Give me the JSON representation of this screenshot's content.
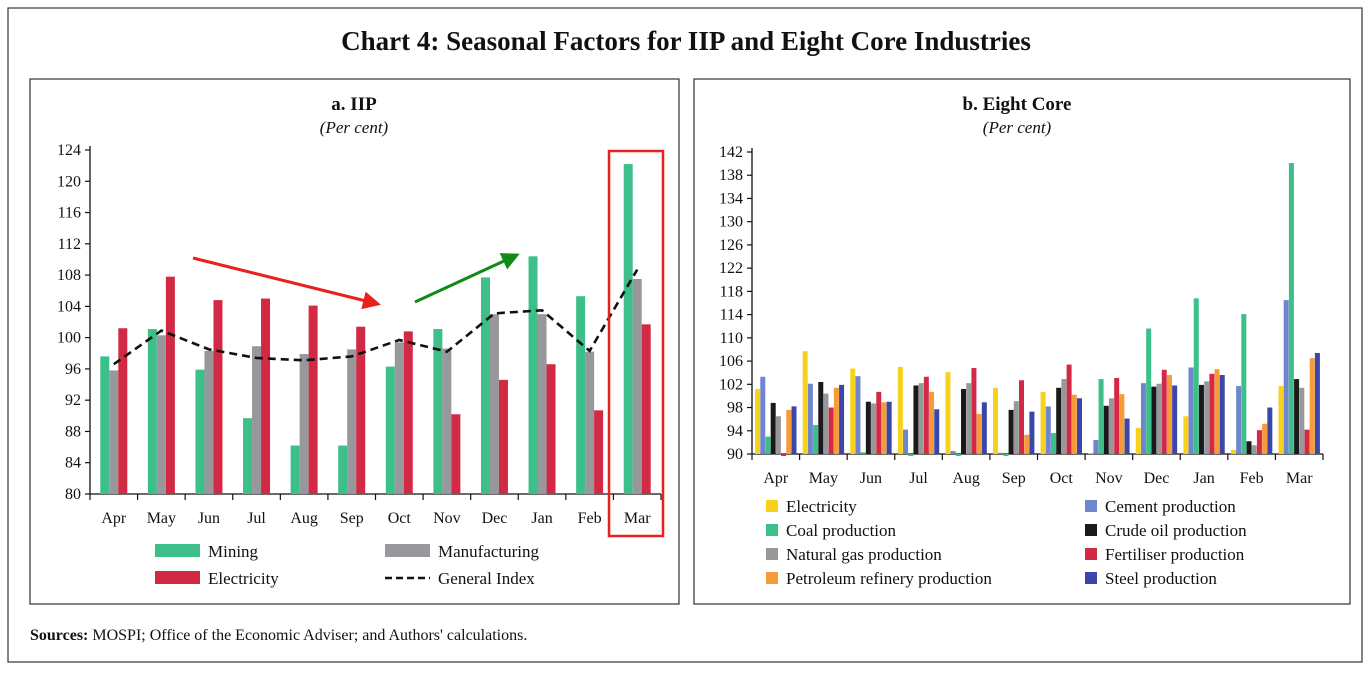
{
  "title": "Chart 4: Seasonal Factors for IIP and Eight Core Industries",
  "sources_label": "Sources:",
  "sources_text": "MOSPI; Office of the Economic Adviser; and Authors' calculations.",
  "chart_data": [
    {
      "type": "bar",
      "title": "a. IIP",
      "subtitle": "(Per cent)",
      "xlabel": "",
      "ylabel": "",
      "ylim": [
        80,
        124
      ],
      "yticks": [
        80,
        84,
        88,
        92,
        96,
        100,
        104,
        108,
        112,
        116,
        120,
        124
      ],
      "categories": [
        "Apr",
        "May",
        "Jun",
        "Jul",
        "Aug",
        "Sep",
        "Oct",
        "Nov",
        "Dec",
        "Jan",
        "Feb",
        "Mar"
      ],
      "series": [
        {
          "name": "Mining",
          "kind": "bar",
          "color": "#3dbf8a",
          "values": [
            97.6,
            101.1,
            95.9,
            89.7,
            86.2,
            86.2,
            96.3,
            101.1,
            107.7,
            110.4,
            105.3,
            122.2
          ]
        },
        {
          "name": "Manufacturing",
          "kind": "bar",
          "color": "#98989c",
          "values": [
            95.8,
            100.3,
            98.3,
            98.9,
            97.9,
            98.5,
            99.4,
            98.6,
            103.0,
            103.0,
            98.2,
            107.5
          ]
        },
        {
          "name": "Electricity",
          "kind": "bar",
          "color": "#d22a45",
          "values": [
            101.2,
            107.8,
            104.8,
            105.0,
            104.1,
            101.4,
            100.8,
            90.2,
            94.6,
            96.6,
            90.7,
            101.7
          ]
        },
        {
          "name": "General Index",
          "kind": "dashed-line",
          "color": "#111111",
          "values": [
            96.6,
            100.9,
            98.5,
            97.4,
            97.1,
            97.6,
            99.7,
            98.2,
            103.1,
            103.5,
            98.3,
            108.7
          ]
        }
      ],
      "legend": "bottom",
      "annotations": [
        {
          "type": "arrow",
          "color": "#e8211d",
          "meaning": "declining trend",
          "from": [
            "May",
            113
          ],
          "to": [
            "Oct",
            107
          ]
        },
        {
          "type": "arrow",
          "color": "#138a16",
          "meaning": "rising trend",
          "from": [
            "Oct",
            104
          ],
          "to": [
            "Jan",
            111
          ]
        },
        {
          "type": "highlight-box",
          "color": "#e8211d",
          "category": "Mar"
        }
      ]
    },
    {
      "type": "bar",
      "title": "b. Eight Core",
      "subtitle": "(Per cent)",
      "xlabel": "",
      "ylabel": "",
      "ylim": [
        90,
        142
      ],
      "yticks": [
        90,
        94,
        98,
        102,
        106,
        110,
        114,
        118,
        122,
        126,
        130,
        134,
        138,
        142
      ],
      "categories": [
        "Apr",
        "May",
        "Jun",
        "Jul",
        "Aug",
        "Sep",
        "Oct",
        "Nov",
        "Dec",
        "Jan",
        "Feb",
        "Mar"
      ],
      "series": [
        {
          "name": "Electricity",
          "color": "#f7d21a",
          "values": [
            101.2,
            107.7,
            104.7,
            105.0,
            104.1,
            101.4,
            100.7,
            90.2,
            94.5,
            96.5,
            90.7,
            101.7
          ]
        },
        {
          "name": "Cement production",
          "color": "#6f86cc",
          "values": [
            103.3,
            102.1,
            103.4,
            94.2,
            90.5,
            90.2,
            98.2,
            92.4,
            102.2,
            104.9,
            101.7,
            116.5
          ]
        },
        {
          "name": "Coal production",
          "color": "#3dbf8a",
          "values": [
            93.0,
            95.0,
            90.3,
            89.9,
            89.8,
            89.8,
            93.6,
            102.9,
            111.6,
            116.8,
            114.1,
            140.1
          ]
        },
        {
          "name": "Crude oil production",
          "color": "#1a1a1a",
          "values": [
            98.8,
            102.4,
            99.0,
            101.8,
            101.2,
            97.6,
            101.4,
            98.3,
            101.6,
            101.9,
            92.2,
            102.9
          ]
        },
        {
          "name": "Natural gas production",
          "color": "#98989c",
          "values": [
            96.5,
            100.4,
            98.7,
            102.2,
            102.2,
            99.1,
            102.9,
            99.6,
            102.1,
            102.5,
            91.5,
            101.4
          ]
        },
        {
          "name": "Fertiliser production",
          "color": "#d22a45",
          "values": [
            89.8,
            98.0,
            100.7,
            103.3,
            104.8,
            102.7,
            105.4,
            103.1,
            104.5,
            103.8,
            94.1,
            94.2
          ]
        },
        {
          "name": "Petroleum refinery production",
          "color": "#f79a3a",
          "values": [
            97.6,
            101.4,
            98.9,
            100.7,
            96.9,
            93.3,
            100.2,
            100.3,
            103.6,
            104.6,
            95.2,
            106.5
          ]
        },
        {
          "name": "Steel production",
          "color": "#3a46a8",
          "values": [
            98.2,
            101.9,
            99.0,
            97.7,
            98.9,
            97.3,
            99.6,
            96.1,
            101.8,
            103.6,
            98.0,
            107.4
          ]
        }
      ],
      "legend": "bottom"
    }
  ]
}
